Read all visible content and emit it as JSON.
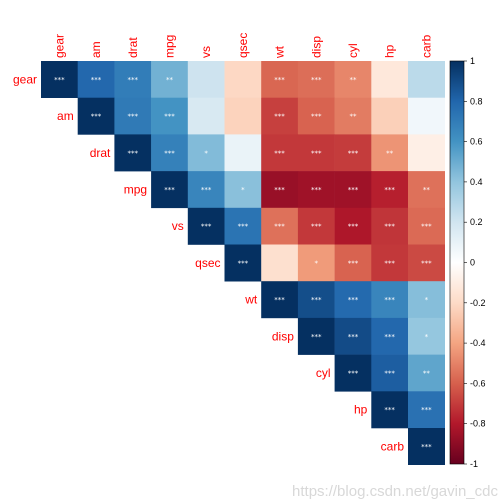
{
  "chart_data": {
    "type": "heatmap",
    "variables": [
      "gear",
      "am",
      "drat",
      "mpg",
      "vs",
      "qsec",
      "wt",
      "disp",
      "cyl",
      "hp",
      "carb"
    ],
    "matrix_shape": "upper-triangle",
    "correlations": [
      [
        1.0,
        0.79,
        0.7,
        0.48,
        0.21,
        -0.21,
        -0.58,
        -0.56,
        -0.49,
        -0.13,
        0.27
      ],
      [
        null,
        1.0,
        0.71,
        0.6,
        0.17,
        -0.23,
        -0.69,
        -0.59,
        -0.52,
        -0.24,
        0.06
      ],
      [
        null,
        null,
        1.0,
        0.68,
        0.44,
        0.09,
        -0.71,
        -0.71,
        -0.7,
        -0.45,
        -0.09
      ],
      [
        null,
        null,
        null,
        1.0,
        0.66,
        0.42,
        -0.87,
        -0.85,
        -0.85,
        -0.78,
        -0.55
      ],
      [
        null,
        null,
        null,
        null,
        1.0,
        0.74,
        -0.55,
        -0.71,
        -0.81,
        -0.72,
        -0.57
      ],
      [
        null,
        null,
        null,
        null,
        null,
        1.0,
        -0.17,
        -0.43,
        -0.59,
        -0.71,
        -0.66
      ],
      [
        null,
        null,
        null,
        null,
        null,
        null,
        1.0,
        0.89,
        0.78,
        0.66,
        0.43
      ],
      [
        null,
        null,
        null,
        null,
        null,
        null,
        null,
        1.0,
        0.9,
        0.79,
        0.39
      ],
      [
        null,
        null,
        null,
        null,
        null,
        null,
        null,
        null,
        1.0,
        0.83,
        0.53
      ],
      [
        null,
        null,
        null,
        null,
        null,
        null,
        null,
        null,
        null,
        1.0,
        0.75
      ],
      [
        null,
        null,
        null,
        null,
        null,
        null,
        null,
        null,
        null,
        null,
        1.0
      ]
    ],
    "significance": [
      [
        "***",
        "***",
        "***",
        "**",
        "",
        "",
        "***",
        "***",
        "**",
        "",
        ""
      ],
      [
        null,
        "***",
        "***",
        "***",
        "",
        "",
        "***",
        "***",
        "**",
        "",
        ""
      ],
      [
        null,
        null,
        "***",
        "***",
        "*",
        "",
        "***",
        "***",
        "***",
        "**",
        ""
      ],
      [
        null,
        null,
        null,
        "***",
        "***",
        "*",
        "***",
        "***",
        "***",
        "***",
        "**"
      ],
      [
        null,
        null,
        null,
        null,
        "***",
        "***",
        "***",
        "***",
        "***",
        "***",
        "***"
      ],
      [
        null,
        null,
        null,
        null,
        null,
        "***",
        "",
        "*",
        "***",
        "***",
        "***"
      ],
      [
        null,
        null,
        null,
        null,
        null,
        null,
        "***",
        "***",
        "***",
        "***",
        "*"
      ],
      [
        null,
        null,
        null,
        null,
        null,
        null,
        null,
        "***",
        "***",
        "***",
        "*"
      ],
      [
        null,
        null,
        null,
        null,
        null,
        null,
        null,
        null,
        "***",
        "***",
        "**"
      ],
      [
        null,
        null,
        null,
        null,
        null,
        null,
        null,
        null,
        null,
        "***",
        "***"
      ],
      [
        null,
        null,
        null,
        null,
        null,
        null,
        null,
        null,
        null,
        null,
        "***"
      ]
    ],
    "colorbar": {
      "range": [
        -1,
        1
      ],
      "ticks": [
        "1",
        "0.8",
        "0.6",
        "0.4",
        "0.2",
        "0",
        "-0.2",
        "-0.4",
        "-0.6",
        "-0.8",
        "-1"
      ],
      "palette": [
        "#67001F",
        "#B2182B",
        "#D6604D",
        "#F4A582",
        "#FDDBC7",
        "#FFFFFF",
        "#D1E5F0",
        "#92C5DE",
        "#4393C3",
        "#2166AC",
        "#053061"
      ]
    },
    "label_color": "#FF0000"
  },
  "watermark": "https://blog.csdn.net/gavin_cdc"
}
